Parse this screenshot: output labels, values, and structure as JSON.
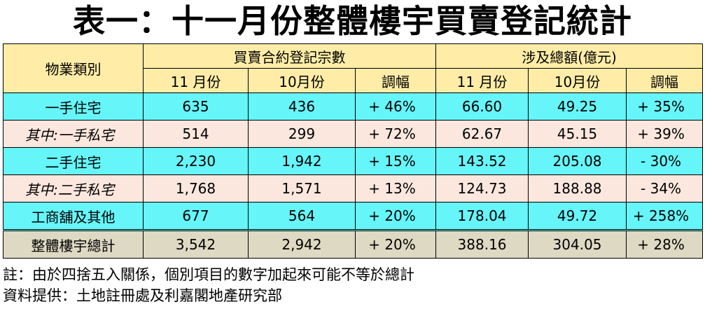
{
  "chart_data": {
    "type": "table",
    "title": "表一：十一月份整體樓宇買賣登記統計",
    "header": {
      "category": "物業類別",
      "group1": "買賣合約登記宗數",
      "group2": "涉及總額(億元)",
      "sub_cols": [
        "11 月份",
        "10月份",
        "調幅",
        "11 月份",
        "10月份",
        "調幅"
      ]
    },
    "rows": [
      {
        "category": "一手住宅",
        "cells": [
          "635",
          "436",
          "+ 46%",
          "66.60",
          "49.25",
          "+ 35%"
        ]
      },
      {
        "category": "其中:一手私宅",
        "cells": [
          "514",
          "299",
          "+ 72%",
          "62.67",
          "45.15",
          "+ 39%"
        ]
      },
      {
        "category": "二手住宅",
        "cells": [
          "2,230",
          "1,942",
          "+ 15%",
          "143.52",
          "205.08",
          "- 30%"
        ]
      },
      {
        "category": "其中:二手私宅",
        "cells": [
          "1,768",
          "1,571",
          "+ 13%",
          "124.73",
          "188.88",
          "- 34%"
        ]
      },
      {
        "category": "工商舖及其他",
        "cells": [
          "677",
          "564",
          "+ 20%",
          "178.04",
          "49.72",
          "+ 258%"
        ]
      },
      {
        "category": "整體樓宇總計",
        "cells": [
          "3,542",
          "2,942",
          "+ 20%",
          "388.16",
          "304.05",
          "+ 28%"
        ]
      }
    ],
    "notes": [
      "註：由於四捨五入關係，個別項目的數字加起來可能不等於總計",
      "資料提供：土地註冊處及利嘉閣地產研究部"
    ]
  }
}
